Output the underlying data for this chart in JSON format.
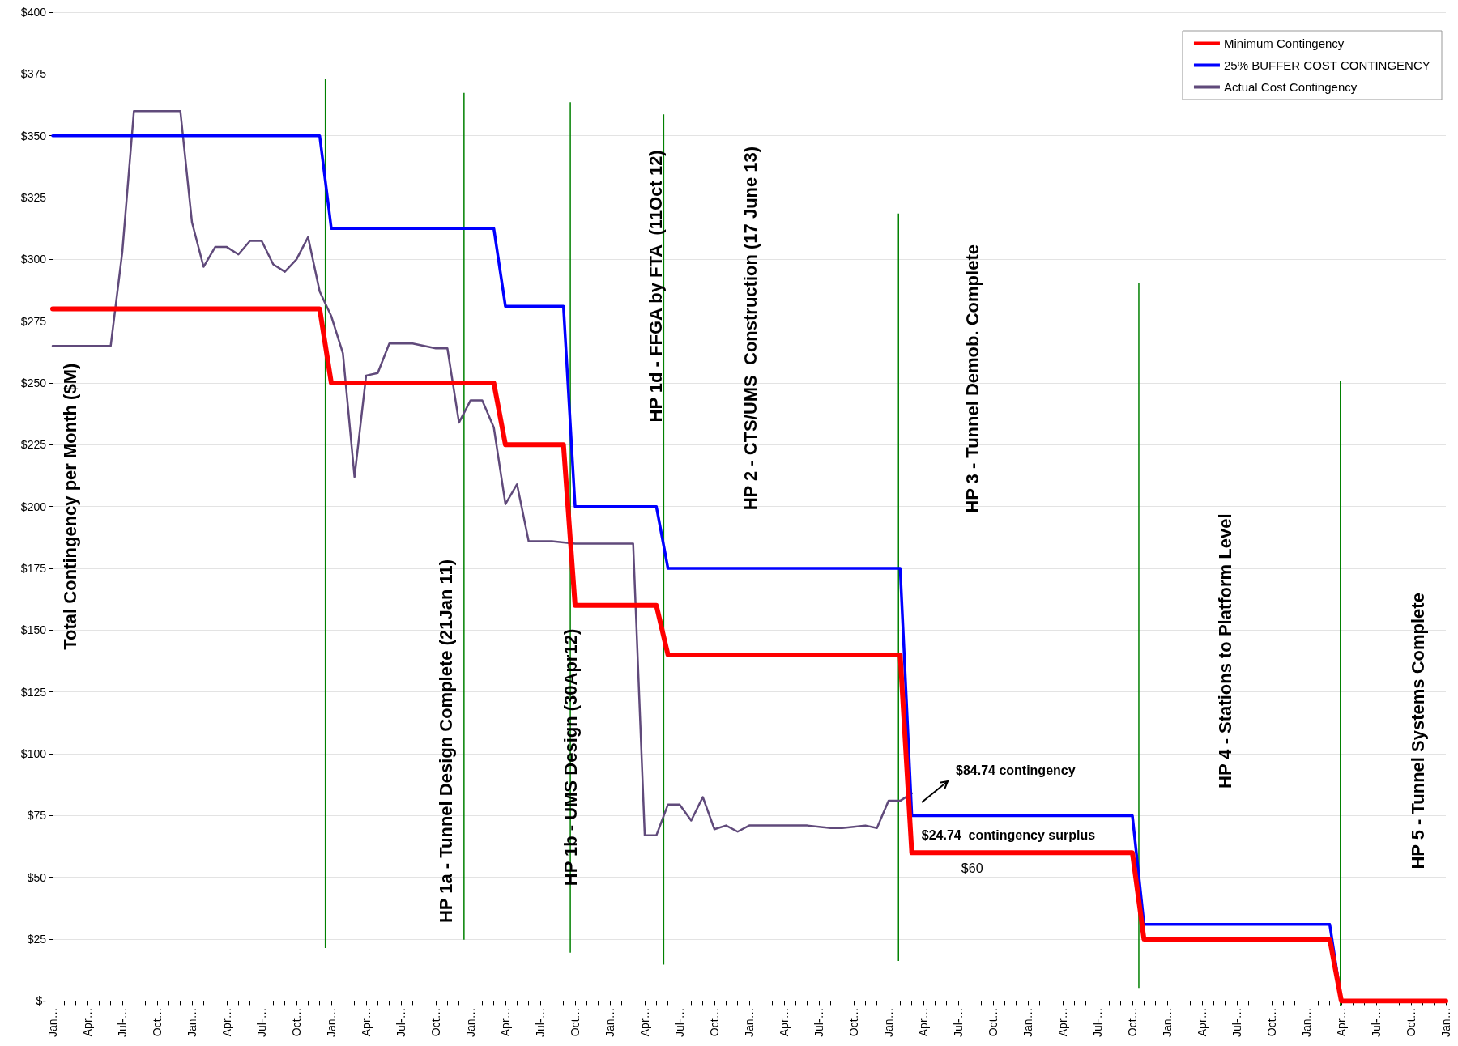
{
  "chart_data": {
    "type": "line",
    "ylabel": "Total Contingency per Month ($M)",
    "categories": [
      "Jan…",
      null,
      null,
      "Apr…",
      null,
      null,
      "Jul-…",
      null,
      null,
      "Oct…",
      null,
      null,
      "Jan…",
      null,
      null,
      "Apr…",
      null,
      null,
      "Jul-…",
      null,
      null,
      "Oct…",
      null,
      null,
      "Jan…",
      null,
      null,
      "Apr…",
      null,
      null,
      "Jul-…",
      null,
      null,
      "Oct…",
      null,
      null,
      "Jan…",
      null,
      null,
      "Apr…",
      null,
      null,
      "Jul-…",
      null,
      null,
      "Oct…",
      null,
      null,
      "Jan…",
      null,
      null,
      "Apr…",
      null,
      null,
      "Jul-…",
      null,
      null,
      "Oct…",
      null,
      null,
      "Jan…",
      null,
      null,
      "Apr…",
      null,
      null,
      "Jul-…",
      null,
      null,
      "Oct…",
      null,
      null,
      "Jan…",
      null,
      null,
      "Apr…",
      null,
      null,
      "Jul-…",
      null,
      null,
      "Oct…",
      null,
      null,
      "Jan…",
      null,
      null,
      "Apr…",
      null,
      null,
      "Jul-…",
      null,
      null,
      "Oct…",
      null,
      null,
      "Jan…",
      null,
      null,
      "Apr…",
      null,
      null,
      "Jul-…",
      null,
      null,
      "Oct…",
      null,
      null,
      "Jan…",
      null,
      null,
      "Apr…",
      null,
      null,
      "Jul-…",
      null,
      null,
      "Oct…",
      null,
      null,
      "Jan…"
    ],
    "ylim": [
      0,
      400
    ],
    "yticks": [
      {
        "value": 0,
        "label": "$-"
      },
      {
        "value": 25,
        "label": "$25"
      },
      {
        "value": 50,
        "label": "$50"
      },
      {
        "value": 75,
        "label": "$75"
      },
      {
        "value": 100,
        "label": "$100"
      },
      {
        "value": 125,
        "label": "$125"
      },
      {
        "value": 150,
        "label": "$150"
      },
      {
        "value": 175,
        "label": "$175"
      },
      {
        "value": 200,
        "label": "$200"
      },
      {
        "value": 225,
        "label": "$225"
      },
      {
        "value": 250,
        "label": "$250"
      },
      {
        "value": 275,
        "label": "$275"
      },
      {
        "value": 300,
        "label": "$300"
      },
      {
        "value": 325,
        "label": "$325"
      },
      {
        "value": 350,
        "label": "$350"
      },
      {
        "value": 375,
        "label": "$375"
      },
      {
        "value": 400,
        "label": "$400"
      }
    ],
    "grid": "y",
    "legend": "top right",
    "series": [
      {
        "name": "Minimum Contingency",
        "color": "#ff0000",
        "values": [
          280,
          280,
          280,
          280,
          280,
          280,
          280,
          280,
          280,
          280,
          280,
          280,
          280,
          280,
          280,
          280,
          280,
          280,
          280,
          280,
          280,
          280,
          280,
          280,
          250,
          250,
          250,
          250,
          250,
          250,
          250,
          250,
          250,
          250,
          250,
          250,
          250,
          250,
          250,
          225,
          225,
          225,
          225,
          225,
          225,
          160,
          160,
          160,
          160,
          160,
          160,
          160,
          160,
          140,
          140,
          140,
          140,
          140,
          140,
          140,
          140,
          140,
          140,
          140,
          140,
          140,
          140,
          140,
          140,
          140,
          140,
          140,
          140,
          140,
          60,
          60,
          60,
          60,
          60,
          60,
          60,
          60,
          60,
          60,
          60,
          60,
          60,
          60,
          60,
          60,
          60,
          60,
          60,
          60,
          25,
          25,
          25,
          25,
          25,
          25,
          25,
          25,
          25,
          25,
          25,
          25,
          25,
          25,
          25,
          25,
          25,
          0,
          0,
          0,
          0,
          0,
          0,
          0,
          0,
          0,
          0
        ]
      },
      {
        "name": "25% BUFFER COST CONTINGENCY",
        "color": "#0000ff",
        "values": [
          350,
          350,
          350,
          350,
          350,
          350,
          350,
          350,
          350,
          350,
          350,
          350,
          350,
          350,
          350,
          350,
          350,
          350,
          350,
          350,
          350,
          350,
          350,
          350,
          312.5,
          312.5,
          312.5,
          312.5,
          312.5,
          312.5,
          312.5,
          312.5,
          312.5,
          312.5,
          312.5,
          312.5,
          312.5,
          312.5,
          312.5,
          281,
          281,
          281,
          281,
          281,
          281,
          200,
          200,
          200,
          200,
          200,
          200,
          200,
          200,
          175,
          175,
          175,
          175,
          175,
          175,
          175,
          175,
          175,
          175,
          175,
          175,
          175,
          175,
          175,
          175,
          175,
          175,
          175,
          175,
          175,
          75,
          75,
          75,
          75,
          75,
          75,
          75,
          75,
          75,
          75,
          75,
          75,
          75,
          75,
          75,
          75,
          75,
          75,
          75,
          75,
          31,
          31,
          31,
          31,
          31,
          31,
          31,
          31,
          31,
          31,
          31,
          31,
          31,
          31,
          31,
          31,
          31,
          0,
          0,
          null,
          null,
          null,
          null,
          null,
          null,
          null,
          null
        ]
      },
      {
        "name": "Actual Cost Contingency",
        "color": "#604a7b",
        "values": [
          265,
          265,
          265,
          265,
          265,
          265,
          303,
          360,
          360,
          360,
          360,
          360,
          315,
          297,
          305,
          305,
          302,
          307.5,
          307.5,
          298,
          295,
          300,
          309,
          287,
          277,
          262,
          212,
          253,
          254,
          266,
          266,
          266,
          265,
          264,
          264,
          234,
          243,
          243,
          232,
          201,
          209,
          186,
          186,
          186,
          185.5,
          185,
          185,
          185,
          185,
          185,
          185,
          67,
          67,
          79.5,
          79.5,
          73,
          82.5,
          69.5,
          71,
          68.5,
          71,
          71,
          71,
          71,
          71,
          71,
          70.5,
          70,
          70,
          70.5,
          71,
          70,
          81,
          81,
          84,
          null,
          null,
          null,
          null,
          null,
          null,
          null,
          null,
          null,
          null,
          null,
          null,
          null,
          null,
          null,
          null,
          null,
          null,
          null,
          null,
          null,
          null,
          null,
          null,
          null,
          null,
          null,
          null,
          null,
          null,
          null,
          null,
          null,
          null,
          null,
          null,
          null,
          null,
          null,
          null,
          null,
          null,
          null,
          null,
          null,
          null
        ]
      }
    ],
    "annotations": [
      "$84.74 contingency",
      "$24.74  contingency surplus",
      "$60",
      "HP 1a - Tunnel Design Complete (21Jan 11)",
      "HP 1b - UMS Design (30Apr12)",
      "HP 1d - FFGA by FTA  (11Oct 12)",
      "HP 2 - CTS/UMS  Construction (17 June 13)",
      "HP 3 - Tunnel Demob. Complete",
      "HP 4 - Stations to Platform Level",
      "HP 5 - Tunnel Systems Complete"
    ]
  }
}
